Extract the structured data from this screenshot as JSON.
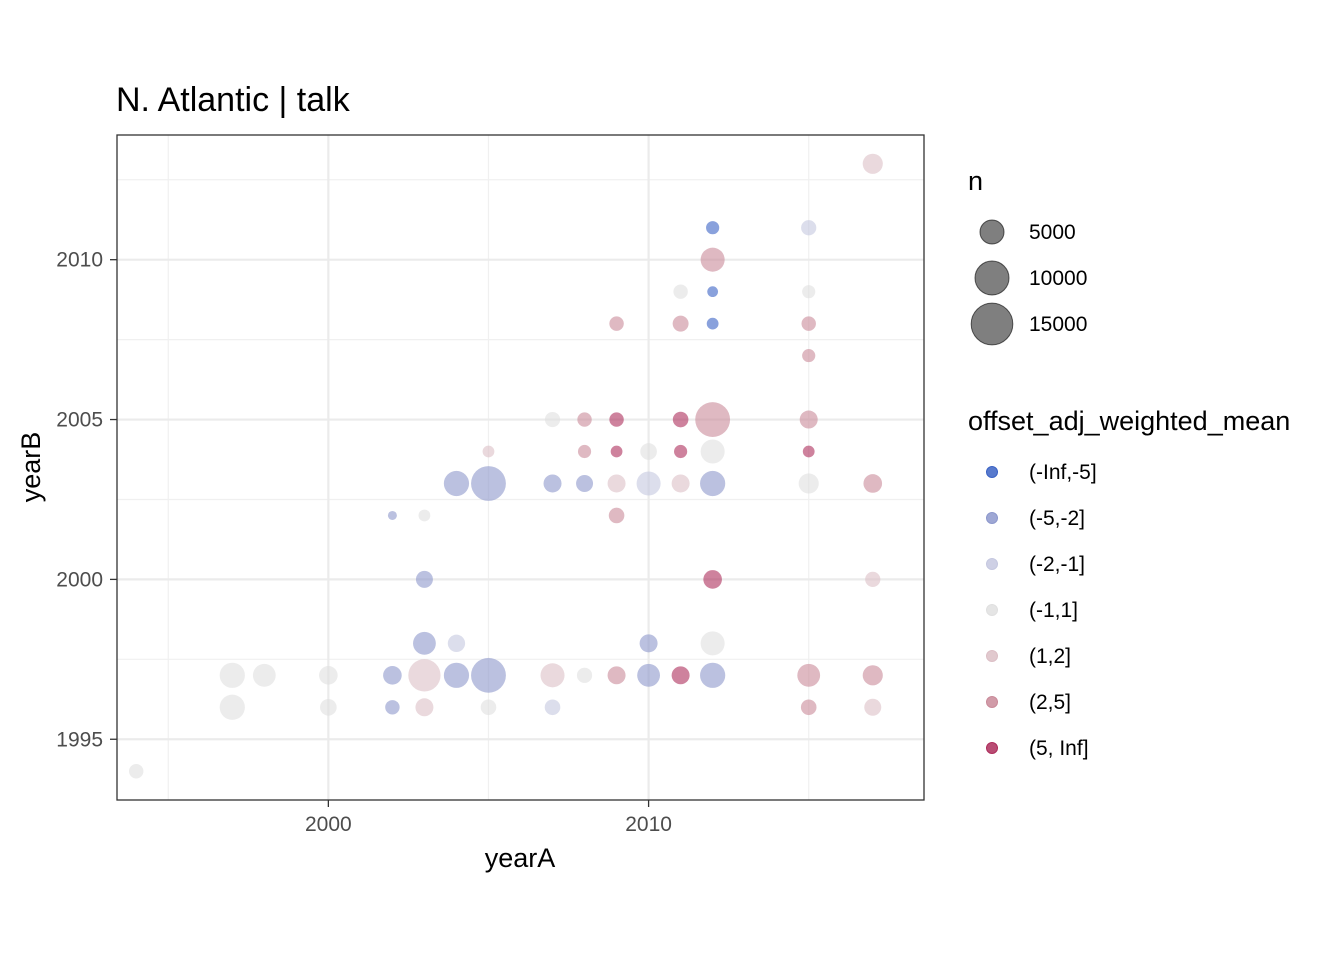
{
  "chart_data": {
    "type": "scatter",
    "title": "N. Atlantic | talk",
    "xlabel": "yearA",
    "ylabel": "yearB",
    "xlim": [
      1993.4,
      2018.6
    ],
    "ylim": [
      1993.1,
      2013.9
    ],
    "x_ticks": [
      2000,
      2010
    ],
    "y_ticks": [
      1995,
      2000,
      2005,
      2010
    ],
    "grid": true,
    "size_legend": {
      "title": "n",
      "entries": [
        {
          "label": "5000",
          "value": 5000
        },
        {
          "label": "10000",
          "value": 10000
        },
        {
          "label": "15000",
          "value": 15000
        }
      ]
    },
    "color_legend": {
      "title": "offset_adj_weighted_mean",
      "entries": [
        {
          "label": "(-Inf,-5]",
          "color": "#3b63c4"
        },
        {
          "label": "(-5,-2]",
          "color": "#8d98cc"
        },
        {
          "label": "(-2,-1]",
          "color": "#c5c8e0"
        },
        {
          "label": "(-1,1]",
          "color": "#e0e0e0"
        },
        {
          "label": "(1,2]",
          "color": "#dcbfc6"
        },
        {
          "label": "(2,5]",
          "color": "#c98a99"
        },
        {
          "label": "(5, Inf]",
          "color": "#ad2e5c"
        }
      ]
    },
    "legend_position": "right",
    "points": [
      {
        "x": 1994,
        "y": 1994,
        "n": 1800,
        "bin": "(-1,1]"
      },
      {
        "x": 1997,
        "y": 1997,
        "n": 5500,
        "bin": "(-1,1]"
      },
      {
        "x": 1997,
        "y": 1996,
        "n": 5500,
        "bin": "(-1,1]"
      },
      {
        "x": 1998,
        "y": 1997,
        "n": 4500,
        "bin": "(-1,1]"
      },
      {
        "x": 2000,
        "y": 1997,
        "n": 3000,
        "bin": "(-1,1]"
      },
      {
        "x": 2000,
        "y": 1996,
        "n": 2400,
        "bin": "(-1,1]"
      },
      {
        "x": 2002,
        "y": 2002,
        "n": 700,
        "bin": "(-5,-2]"
      },
      {
        "x": 2002,
        "y": 1997,
        "n": 3000,
        "bin": "(-5,-2]"
      },
      {
        "x": 2002,
        "y": 1996,
        "n": 1800,
        "bin": "(-5,-2]"
      },
      {
        "x": 2003,
        "y": 2002,
        "n": 1200,
        "bin": "(-1,1]"
      },
      {
        "x": 2003,
        "y": 2000,
        "n": 2500,
        "bin": "(-5,-2]"
      },
      {
        "x": 2003,
        "y": 1998,
        "n": 4500,
        "bin": "(-5,-2]"
      },
      {
        "x": 2003,
        "y": 1997,
        "n": 9000,
        "bin": "(1,2]"
      },
      {
        "x": 2003,
        "y": 1996,
        "n": 2800,
        "bin": "(1,2]"
      },
      {
        "x": 2004,
        "y": 2003,
        "n": 5500,
        "bin": "(-5,-2]"
      },
      {
        "x": 2004,
        "y": 1998,
        "n": 2600,
        "bin": "(-2,-1]"
      },
      {
        "x": 2004,
        "y": 1997,
        "n": 5500,
        "bin": "(-5,-2]"
      },
      {
        "x": 2005,
        "y": 2004,
        "n": 1200,
        "bin": "(1,2]"
      },
      {
        "x": 2005,
        "y": 2003,
        "n": 10500,
        "bin": "(-5,-2]"
      },
      {
        "x": 2005,
        "y": 1997,
        "n": 10500,
        "bin": "(-5,-2]"
      },
      {
        "x": 2005,
        "y": 1996,
        "n": 2100,
        "bin": "(-1,1]"
      },
      {
        "x": 2007,
        "y": 2005,
        "n": 2000,
        "bin": "(-1,1]"
      },
      {
        "x": 2007,
        "y": 2003,
        "n": 2800,
        "bin": "(-5,-2]"
      },
      {
        "x": 2007,
        "y": 1997,
        "n": 5000,
        "bin": "(1,2]"
      },
      {
        "x": 2007,
        "y": 1996,
        "n": 2100,
        "bin": "(-2,-1]"
      },
      {
        "x": 2008,
        "y": 2005,
        "n": 1800,
        "bin": "(2,5]"
      },
      {
        "x": 2008,
        "y": 2004,
        "n": 1500,
        "bin": "(2,5]"
      },
      {
        "x": 2008,
        "y": 2003,
        "n": 2500,
        "bin": "(-5,-2]"
      },
      {
        "x": 2008,
        "y": 1997,
        "n": 2000,
        "bin": "(-1,1]"
      },
      {
        "x": 2009,
        "y": 2008,
        "n": 1800,
        "bin": "(2,5]"
      },
      {
        "x": 2009,
        "y": 2005,
        "n": 1800,
        "bin": "(5, Inf]"
      },
      {
        "x": 2009,
        "y": 2004,
        "n": 1200,
        "bin": "(5, Inf]"
      },
      {
        "x": 2009,
        "y": 2003,
        "n": 2800,
        "bin": "(1,2]"
      },
      {
        "x": 2009,
        "y": 2002,
        "n": 2100,
        "bin": "(2,5]"
      },
      {
        "x": 2009,
        "y": 1997,
        "n": 2800,
        "bin": "(2,5]"
      },
      {
        "x": 2010,
        "y": 2004,
        "n": 2400,
        "bin": "(-1,1]"
      },
      {
        "x": 2010,
        "y": 2003,
        "n": 5000,
        "bin": "(-2,-1]"
      },
      {
        "x": 2010,
        "y": 1998,
        "n": 2800,
        "bin": "(-5,-2]"
      },
      {
        "x": 2010,
        "y": 1997,
        "n": 4500,
        "bin": "(-5,-2]"
      },
      {
        "x": 2011,
        "y": 2009,
        "n": 1800,
        "bin": "(-1,1]"
      },
      {
        "x": 2011,
        "y": 2008,
        "n": 2200,
        "bin": "(2,5]"
      },
      {
        "x": 2011,
        "y": 2005,
        "n": 2100,
        "bin": "(5, Inf]"
      },
      {
        "x": 2011,
        "y": 2004,
        "n": 1500,
        "bin": "(5, Inf]"
      },
      {
        "x": 2011,
        "y": 2003,
        "n": 2800,
        "bin": "(1,2]"
      },
      {
        "x": 2011,
        "y": 1997,
        "n": 2800,
        "bin": "(5, Inf]"
      },
      {
        "x": 2012,
        "y": 2011,
        "n": 1500,
        "bin": "(-Inf,-5]"
      },
      {
        "x": 2012,
        "y": 2010,
        "n": 5000,
        "bin": "(2,5]"
      },
      {
        "x": 2012,
        "y": 2009,
        "n": 1000,
        "bin": "(-Inf,-5]"
      },
      {
        "x": 2012,
        "y": 2008,
        "n": 1200,
        "bin": "(-Inf,-5]"
      },
      {
        "x": 2012,
        "y": 2005,
        "n": 10500,
        "bin": "(2,5]"
      },
      {
        "x": 2012,
        "y": 2004,
        "n": 5000,
        "bin": "(-1,1]"
      },
      {
        "x": 2012,
        "y": 2003,
        "n": 5500,
        "bin": "(-5,-2]"
      },
      {
        "x": 2012,
        "y": 2000,
        "n": 3000,
        "bin": "(5, Inf]"
      },
      {
        "x": 2012,
        "y": 1998,
        "n": 5000,
        "bin": "(-1,1]"
      },
      {
        "x": 2012,
        "y": 1997,
        "n": 5500,
        "bin": "(-5,-2]"
      },
      {
        "x": 2015,
        "y": 2011,
        "n": 2000,
        "bin": "(-2,-1]"
      },
      {
        "x": 2015,
        "y": 2009,
        "n": 1500,
        "bin": "(-1,1]"
      },
      {
        "x": 2015,
        "y": 2008,
        "n": 1800,
        "bin": "(2,5]"
      },
      {
        "x": 2015,
        "y": 2007,
        "n": 1500,
        "bin": "(2,5]"
      },
      {
        "x": 2015,
        "y": 2005,
        "n": 2800,
        "bin": "(2,5]"
      },
      {
        "x": 2015,
        "y": 2004,
        "n": 1200,
        "bin": "(5, Inf]"
      },
      {
        "x": 2015,
        "y": 2003,
        "n": 3500,
        "bin": "(-1,1]"
      },
      {
        "x": 2015,
        "y": 1997,
        "n": 4500,
        "bin": "(2,5]"
      },
      {
        "x": 2015,
        "y": 1996,
        "n": 2100,
        "bin": "(2,5]"
      },
      {
        "x": 2017,
        "y": 2013,
        "n": 3500,
        "bin": "(1,2]"
      },
      {
        "x": 2017,
        "y": 2003,
        "n": 3000,
        "bin": "(2,5]"
      },
      {
        "x": 2017,
        "y": 2000,
        "n": 2000,
        "bin": "(1,2]"
      },
      {
        "x": 2017,
        "y": 1997,
        "n": 3500,
        "bin": "(2,5]"
      },
      {
        "x": 2017,
        "y": 1996,
        "n": 2500,
        "bin": "(1,2]"
      }
    ]
  }
}
